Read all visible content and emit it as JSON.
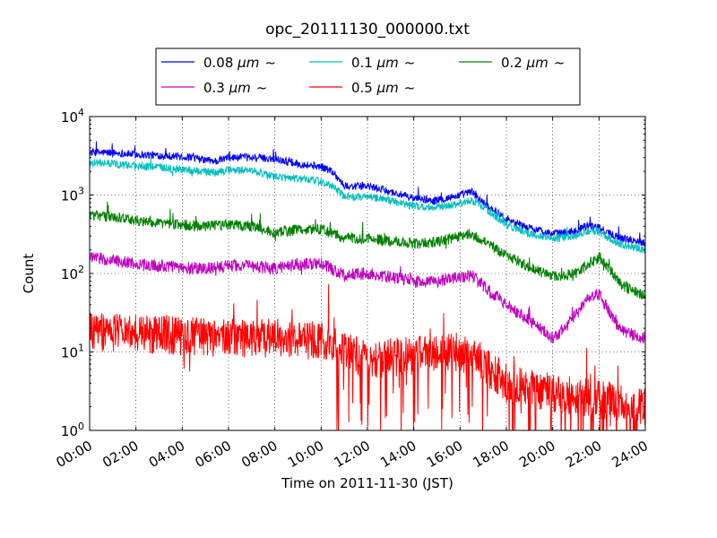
{
  "chart_data": {
    "type": "line",
    "title": "opc_20111130_000000.txt",
    "xlabel": "Time on 2011-11-30 (JST)",
    "ylabel": "Count",
    "x_unit": "hours",
    "xlim": [
      0,
      24
    ],
    "ylim": [
      1,
      10000
    ],
    "yscale": "log",
    "grid": true,
    "legend_position": "top-center (above plot)",
    "x_ticks": [
      {
        "value": 0,
        "label": "00:00"
      },
      {
        "value": 2,
        "label": "02:00"
      },
      {
        "value": 4,
        "label": "04:00"
      },
      {
        "value": 6,
        "label": "06:00"
      },
      {
        "value": 8,
        "label": "08:00"
      },
      {
        "value": 10,
        "label": "10:00"
      },
      {
        "value": 12,
        "label": "12:00"
      },
      {
        "value": 14,
        "label": "14:00"
      },
      {
        "value": 16,
        "label": "16:00"
      },
      {
        "value": 18,
        "label": "18:00"
      },
      {
        "value": 20,
        "label": "20:00"
      },
      {
        "value": 22,
        "label": "22:00"
      },
      {
        "value": 24,
        "label": "24:00"
      }
    ],
    "y_ticks": [
      {
        "value": 1,
        "base": "10",
        "exp": "0"
      },
      {
        "value": 10,
        "base": "10",
        "exp": "1"
      },
      {
        "value": 100,
        "base": "10",
        "exp": "2"
      },
      {
        "value": 1000,
        "base": "10",
        "exp": "3"
      },
      {
        "value": 10000,
        "base": "10",
        "exp": "4"
      }
    ],
    "series": [
      {
        "name": "0.08 μm ~",
        "name_value": "0.08",
        "name_unit": "μm",
        "name_suffix": "~",
        "color": "#0000ff",
        "noise": 0.05,
        "x": [
          0,
          1,
          2,
          3,
          4,
          5,
          5.5,
          6,
          7,
          8,
          9,
          10,
          10.5,
          11,
          12,
          13,
          14,
          15,
          16,
          16.5,
          17,
          18,
          19,
          20,
          21,
          21.5,
          22,
          22.5,
          23,
          24
        ],
        "values": [
          3500,
          3450,
          3300,
          3200,
          3100,
          2800,
          2700,
          3000,
          3000,
          2900,
          2500,
          2300,
          2000,
          1300,
          1300,
          1100,
          900,
          850,
          1000,
          1100,
          800,
          500,
          380,
          320,
          350,
          420,
          380,
          320,
          280,
          250
        ]
      },
      {
        "name": "0.1 μm ~",
        "name_value": "0.1",
        "name_unit": "μm",
        "name_suffix": "~",
        "color": "#00bfbf",
        "noise": 0.05,
        "x": [
          0,
          1,
          2,
          3,
          4,
          5,
          5.5,
          6,
          7,
          8,
          9,
          10,
          10.5,
          11,
          12,
          13,
          14,
          15,
          16,
          16.5,
          17,
          18,
          19,
          20,
          21,
          21.5,
          22,
          22.5,
          23,
          24
        ],
        "values": [
          2600,
          2500,
          2350,
          2250,
          2100,
          2000,
          1900,
          2100,
          2050,
          1700,
          1600,
          1500,
          1300,
          950,
          950,
          850,
          720,
          700,
          780,
          850,
          700,
          420,
          320,
          280,
          300,
          350,
          340,
          270,
          230,
          200
        ]
      },
      {
        "name": "0.2 μm ~",
        "name_value": "0.2",
        "name_unit": "μm",
        "name_suffix": "~",
        "color": "#008000",
        "noise": 0.07,
        "x": [
          0,
          1,
          2,
          3,
          4,
          5,
          6,
          7,
          8,
          9,
          10,
          11,
          12,
          13,
          14,
          15,
          16,
          16.5,
          17,
          18,
          19,
          20,
          21,
          21.5,
          22,
          22.5,
          23,
          24
        ],
        "values": [
          550,
          520,
          480,
          440,
          420,
          400,
          420,
          400,
          330,
          360,
          370,
          280,
          280,
          260,
          240,
          250,
          300,
          320,
          260,
          170,
          120,
          90,
          100,
          130,
          160,
          110,
          70,
          50
        ]
      },
      {
        "name": "0.3 μm ~",
        "name_value": "0.3",
        "name_unit": "μm",
        "name_suffix": "~",
        "color": "#bf00bf",
        "noise": 0.08,
        "x": [
          0,
          1,
          2,
          3,
          4,
          5,
          6,
          7,
          8,
          9,
          10,
          11,
          12,
          13,
          14,
          15,
          16,
          16.5,
          17,
          18,
          19,
          20,
          20.5,
          21,
          21.5,
          22,
          22.5,
          23,
          24
        ],
        "values": [
          160,
          150,
          130,
          125,
          120,
          115,
          125,
          125,
          115,
          130,
          135,
          95,
          100,
          90,
          80,
          80,
          90,
          95,
          70,
          40,
          25,
          15,
          20,
          30,
          45,
          55,
          30,
          18,
          15
        ]
      },
      {
        "name": "0.5 μm ~",
        "name_value": "0.5",
        "name_unit": "μm",
        "name_suffix": "~",
        "color": "#ff0000",
        "noise": 0.25,
        "spiky": true,
        "x": [
          0,
          2,
          4,
          6,
          8,
          10,
          11,
          12,
          14,
          16,
          16.5,
          17,
          18,
          20,
          22,
          24
        ],
        "values": [
          18,
          17,
          16,
          15,
          15,
          14,
          10,
          8,
          9,
          10,
          11,
          7,
          4,
          3,
          2.5,
          2
        ]
      }
    ]
  }
}
